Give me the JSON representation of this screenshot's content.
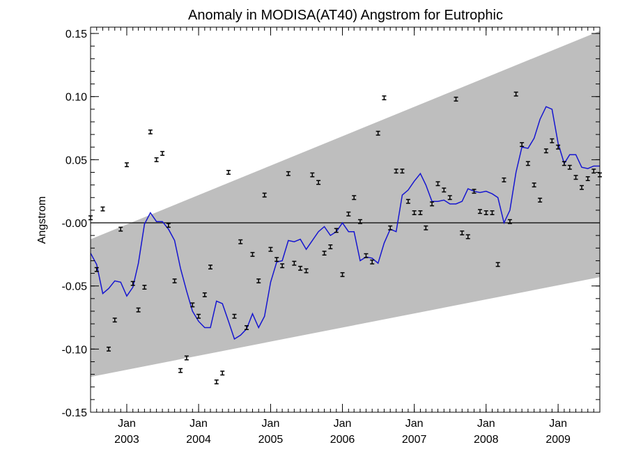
{
  "chart_data": {
    "type": "line",
    "title": "Anomaly in MODISA(AT40) Angstrom for Eutrophic",
    "ylabel": "Angstrom",
    "xlabel": "",
    "xlim": [
      "2002-07-01",
      "2009-08-01"
    ],
    "ylim": [
      -0.15,
      0.155
    ],
    "y_ticks": [
      {
        "value": 0.15,
        "label": "0.15"
      },
      {
        "value": 0.1,
        "label": "0.10"
      },
      {
        "value": 0.05,
        "label": "0.05"
      },
      {
        "value": 0.0,
        "label": "-0.00"
      },
      {
        "value": -0.05,
        "label": "-0.05"
      },
      {
        "value": -0.1,
        "label": "-0.10"
      },
      {
        "value": -0.15,
        "label": "-0.15"
      }
    ],
    "x_ticks": [
      {
        "date": "2003-01-01",
        "month": "Jan",
        "year": "2003"
      },
      {
        "date": "2004-01-01",
        "month": "Jan",
        "year": "2004"
      },
      {
        "date": "2005-01-01",
        "month": "Jan",
        "year": "2005"
      },
      {
        "date": "2006-01-01",
        "month": "Jan",
        "year": "2006"
      },
      {
        "date": "2007-01-01",
        "month": "Jan",
        "year": "2007"
      },
      {
        "date": "2008-01-01",
        "month": "Jan",
        "year": "2008"
      },
      {
        "date": "2009-01-01",
        "month": "Jan",
        "year": "2009"
      }
    ],
    "band": {
      "start": {
        "x": "2002-07-01",
        "lower": -0.122,
        "upper": -0.013
      },
      "end": {
        "x": "2009-08-01",
        "lower": -0.043,
        "upper": 0.152
      },
      "color": "#bebebe"
    },
    "zero_line": 0.0,
    "series": [
      {
        "kind": "line",
        "color": "#1515d0",
        "x": [
          "2002-07-01",
          "2002-08-01",
          "2002-09-01",
          "2002-10-01",
          "2002-11-01",
          "2002-12-01",
          "2003-01-01",
          "2003-02-01",
          "2003-03-01",
          "2003-04-01",
          "2003-05-01",
          "2003-06-01",
          "2003-07-01",
          "2003-08-01",
          "2003-09-01",
          "2003-10-01",
          "2003-11-01",
          "2003-12-01",
          "2004-01-01",
          "2004-02-01",
          "2004-03-01",
          "2004-04-01",
          "2004-05-01",
          "2004-06-01",
          "2004-07-01",
          "2004-08-01",
          "2004-09-01",
          "2004-10-01",
          "2004-11-01",
          "2004-12-01",
          "2005-01-01",
          "2005-02-01",
          "2005-03-01",
          "2005-04-01",
          "2005-05-01",
          "2005-06-01",
          "2005-07-01",
          "2005-08-01",
          "2005-09-01",
          "2005-10-01",
          "2005-11-01",
          "2005-12-01",
          "2006-01-01",
          "2006-02-01",
          "2006-03-01",
          "2006-04-01",
          "2006-05-01",
          "2006-06-01",
          "2006-07-01",
          "2006-08-01",
          "2006-09-01",
          "2006-10-01",
          "2006-11-01",
          "2006-12-01",
          "2007-01-01",
          "2007-02-01",
          "2007-03-01",
          "2007-04-01",
          "2007-05-01",
          "2007-06-01",
          "2007-07-01",
          "2007-08-01",
          "2007-09-01",
          "2007-10-01",
          "2007-11-01",
          "2007-12-01",
          "2008-01-01",
          "2008-02-01",
          "2008-03-01",
          "2008-04-01",
          "2008-05-01",
          "2008-06-01",
          "2008-07-01",
          "2008-08-01",
          "2008-09-01",
          "2008-10-01",
          "2008-11-01",
          "2008-12-01",
          "2009-01-01",
          "2009-02-01",
          "2009-03-01",
          "2009-04-01",
          "2009-05-01",
          "2009-06-01",
          "2009-07-01",
          "2009-08-01"
        ],
        "values": [
          -0.024,
          -0.033,
          -0.056,
          -0.052,
          -0.046,
          -0.047,
          -0.058,
          -0.051,
          -0.032,
          -0.001,
          0.008,
          0.001,
          0.001,
          -0.005,
          -0.014,
          -0.036,
          -0.054,
          -0.07,
          -0.078,
          -0.083,
          -0.083,
          -0.062,
          -0.064,
          -0.078,
          -0.092,
          -0.089,
          -0.084,
          -0.072,
          -0.083,
          -0.074,
          -0.047,
          -0.031,
          -0.03,
          -0.014,
          -0.015,
          -0.013,
          -0.021,
          -0.014,
          -0.007,
          -0.003,
          -0.01,
          -0.007,
          0.0,
          -0.007,
          -0.007,
          -0.03,
          -0.027,
          -0.028,
          -0.032,
          -0.016,
          -0.005,
          -0.007,
          0.022,
          0.026,
          0.033,
          0.039,
          0.03,
          0.017,
          0.017,
          0.018,
          0.015,
          0.015,
          0.017,
          0.027,
          0.025,
          0.024,
          0.025,
          0.023,
          0.02,
          0.0,
          0.01,
          0.04,
          0.06,
          0.059,
          0.067,
          0.082,
          0.092,
          0.09,
          0.063,
          0.047,
          0.054,
          0.054,
          0.044,
          0.043,
          0.045,
          0.045
        ]
      },
      {
        "kind": "errorbar",
        "color": "#000000",
        "error": 0.0015,
        "x": [
          "2002-07-01",
          "2002-08-01",
          "2002-09-01",
          "2002-10-01",
          "2002-11-01",
          "2002-12-01",
          "2003-01-01",
          "2003-02-01",
          "2003-03-01",
          "2003-04-01",
          "2003-05-01",
          "2003-06-01",
          "2003-07-01",
          "2003-08-01",
          "2003-09-01",
          "2003-10-01",
          "2003-11-01",
          "2003-12-01",
          "2004-01-01",
          "2004-02-01",
          "2004-03-01",
          "2004-04-01",
          "2004-05-01",
          "2004-06-01",
          "2004-07-01",
          "2004-08-01",
          "2004-09-01",
          "2004-10-01",
          "2004-11-01",
          "2004-12-01",
          "2005-01-01",
          "2005-02-01",
          "2005-03-01",
          "2005-04-01",
          "2005-05-01",
          "2005-06-01",
          "2005-07-01",
          "2005-08-01",
          "2005-09-01",
          "2005-10-01",
          "2005-11-01",
          "2005-12-01",
          "2006-01-01",
          "2006-02-01",
          "2006-03-01",
          "2006-04-01",
          "2006-05-01",
          "2006-06-01",
          "2006-07-01",
          "2006-08-01",
          "2006-09-01",
          "2006-10-01",
          "2006-11-01",
          "2006-12-01",
          "2007-01-01",
          "2007-02-01",
          "2007-03-01",
          "2007-04-01",
          "2007-05-01",
          "2007-06-01",
          "2007-07-01",
          "2007-08-01",
          "2007-09-01",
          "2007-10-01",
          "2007-11-01",
          "2007-12-01",
          "2008-01-01",
          "2008-02-01",
          "2008-03-01",
          "2008-04-01",
          "2008-05-01",
          "2008-06-01",
          "2008-07-01",
          "2008-08-01",
          "2008-09-01",
          "2008-10-01",
          "2008-11-01",
          "2008-12-01",
          "2009-01-01",
          "2009-02-01",
          "2009-03-01",
          "2009-04-01",
          "2009-05-01",
          "2009-06-01",
          "2009-07-01",
          "2009-08-01"
        ],
        "values": [
          0.004,
          -0.037,
          0.011,
          -0.1,
          -0.077,
          -0.005,
          0.046,
          -0.048,
          -0.069,
          -0.051,
          0.072,
          0.05,
          0.055,
          -0.002,
          -0.046,
          -0.117,
          -0.107,
          -0.065,
          -0.074,
          -0.057,
          -0.035,
          -0.126,
          -0.119,
          0.04,
          -0.074,
          -0.015,
          -0.083,
          -0.025,
          -0.046,
          0.022,
          -0.021,
          -0.029,
          -0.034,
          0.039,
          -0.032,
          -0.036,
          -0.038,
          0.038,
          0.032,
          -0.024,
          -0.019,
          -0.006,
          -0.041,
          0.007,
          0.02,
          0.001,
          -0.026,
          -0.031,
          0.071,
          0.099,
          -0.004,
          0.041,
          0.041,
          0.017,
          0.008,
          0.008,
          -0.004,
          0.015,
          0.031,
          0.026,
          0.02,
          0.098,
          -0.008,
          -0.011,
          0.025,
          0.009,
          0.008,
          0.008,
          -0.033,
          0.034,
          0.001,
          0.102,
          0.062,
          0.047,
          0.03,
          0.018,
          0.057,
          0.065,
          0.06,
          0.047,
          0.044,
          0.036,
          0.028,
          0.035,
          0.041,
          0.038
        ]
      }
    ]
  }
}
